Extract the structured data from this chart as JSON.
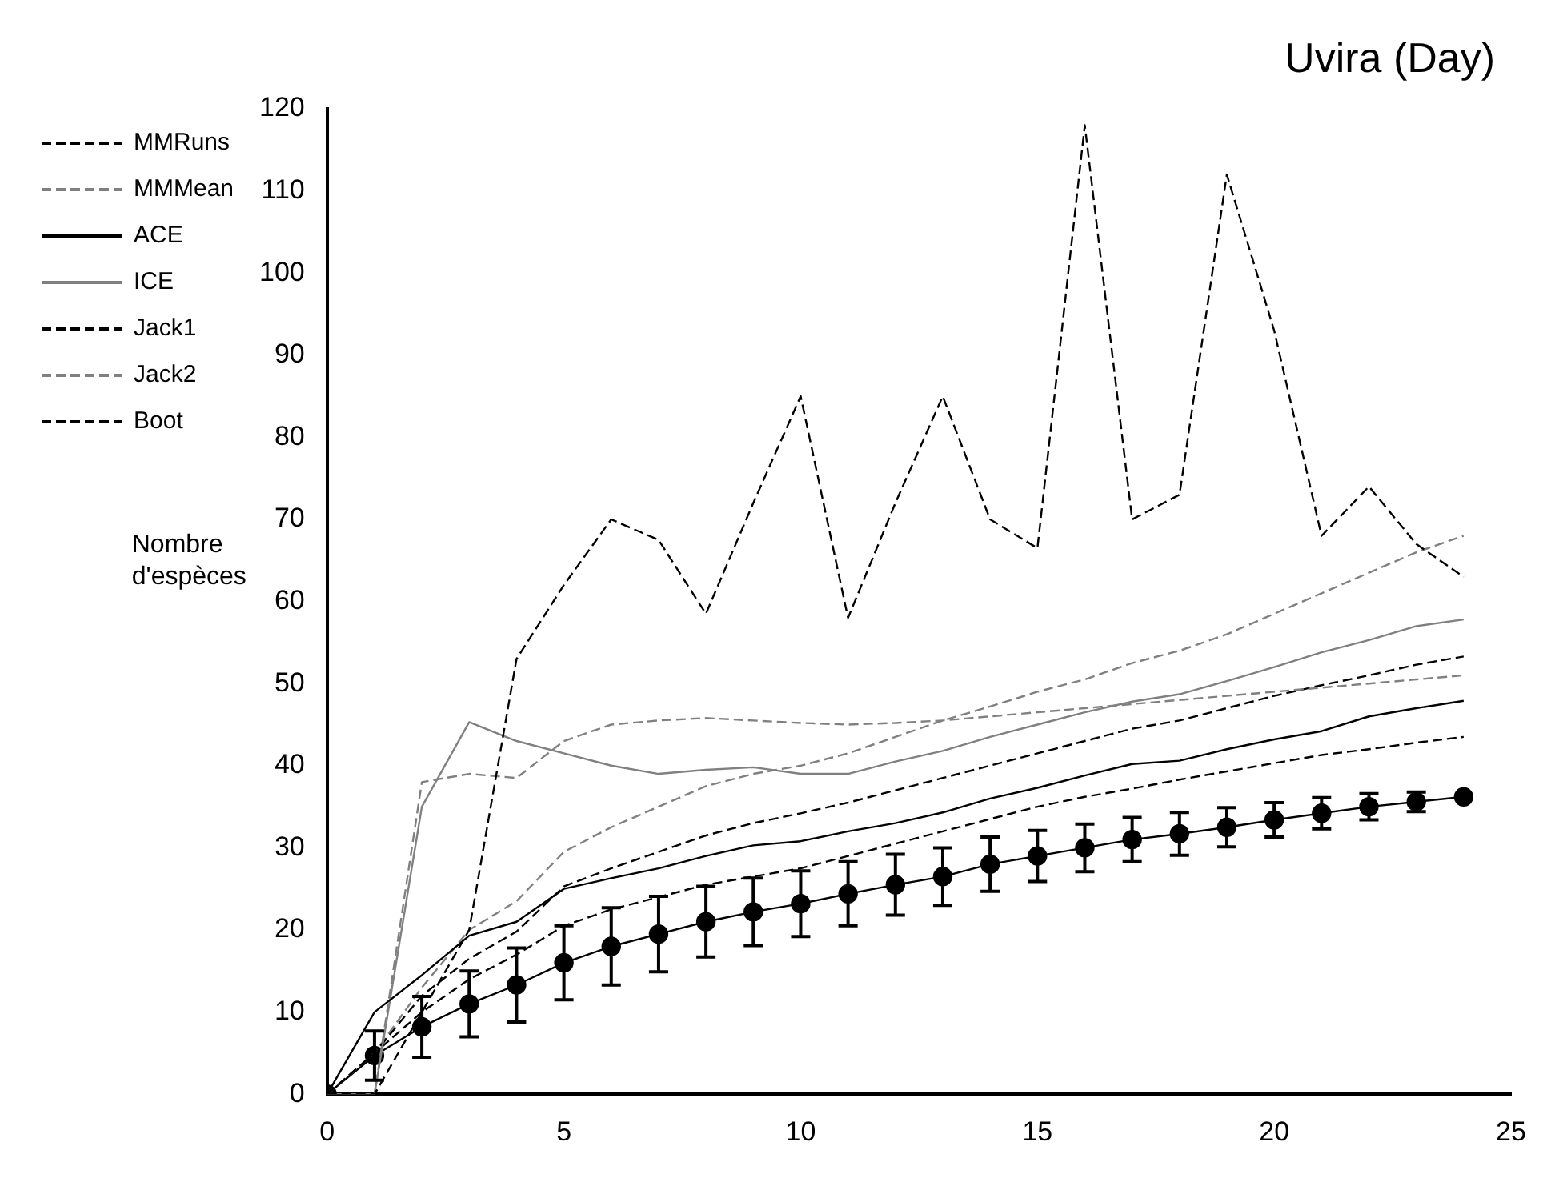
{
  "chart_data": {
    "type": "line",
    "title": "Uvira (Day)",
    "ylabel": "Nombre d'espèces",
    "x": [
      0,
      1,
      2,
      3,
      4,
      5,
      6,
      7,
      8,
      9,
      10,
      11,
      12,
      13,
      14,
      15,
      16,
      17,
      18,
      19,
      20,
      21,
      22,
      23,
      24
    ],
    "xlim": [
      0,
      25
    ],
    "xticks": [
      0,
      5,
      10,
      15,
      20,
      25
    ],
    "ylim": [
      0,
      120
    ],
    "yticks": [
      0,
      10,
      20,
      30,
      40,
      50,
      60,
      70,
      80,
      90,
      100,
      110,
      120
    ],
    "grid": false,
    "legend": "top left",
    "series": [
      {
        "name": "MMRuns",
        "color": "#000000",
        "line_style": "dashed",
        "marker": "none",
        "values": [
          0,
          0,
          10,
          20,
          53,
          62,
          70,
          67.5,
          58.5,
          72,
          85,
          58,
          72,
          85,
          70,
          66.5,
          118,
          70,
          73,
          112,
          93,
          68,
          74,
          67,
          63
        ]
      },
      {
        "name": "MMMean",
        "color": "#808080",
        "line_style": "dashed",
        "marker": "none",
        "values": [
          0,
          0,
          38,
          39,
          38.5,
          43,
          45,
          45.5,
          45.8,
          45.5,
          45.2,
          45,
          45.2,
          45.5,
          46,
          46.5,
          47,
          47.5,
          48,
          48.5,
          49,
          49.5,
          50,
          50.5,
          51
        ]
      },
      {
        "name": "ACE",
        "color": "#000000",
        "line_style": "solid",
        "marker": "none",
        "values": [
          0,
          10,
          14.5,
          19.3,
          21,
          25,
          26.3,
          27.5,
          29,
          30.3,
          30.8,
          32,
          33,
          34.3,
          36,
          37.3,
          38.8,
          40.2,
          40.6,
          42,
          43.2,
          44.2,
          46,
          47,
          47.9
        ]
      },
      {
        "name": "ICE",
        "color": "#808080",
        "line_style": "solid",
        "marker": "none",
        "values": [
          0,
          0,
          35,
          45.3,
          43,
          41.5,
          40,
          39,
          39.5,
          39.8,
          39,
          39,
          40.5,
          41.8,
          43.5,
          45,
          46.5,
          47.8,
          48.7,
          50.3,
          52,
          53.8,
          55.3,
          57,
          57.8
        ]
      },
      {
        "name": "Jack1",
        "color": "#000000",
        "line_style": "dashed",
        "marker": "none",
        "values": [
          0,
          5,
          12,
          16.5,
          19.8,
          25.3,
          27.5,
          29.5,
          31.5,
          33,
          34.2,
          35.5,
          37,
          38.5,
          40,
          41.5,
          43,
          44.5,
          45.5,
          47,
          48.5,
          49.8,
          51,
          52.3,
          53.3
        ]
      },
      {
        "name": "Jack2",
        "color": "#808080",
        "line_style": "dashed",
        "marker": "none",
        "values": [
          0,
          5,
          13,
          20,
          23.5,
          29.5,
          32.5,
          35,
          37.5,
          39,
          40,
          41.5,
          43.5,
          45.5,
          47.2,
          49,
          50.5,
          52.5,
          54,
          56,
          58.5,
          61,
          63.5,
          66,
          68
        ]
      },
      {
        "name": "Boot",
        "color": "#000000",
        "line_style": "dashed",
        "marker": "none",
        "values": [
          0,
          5,
          10,
          14,
          17,
          20.5,
          22.5,
          24,
          25.5,
          26.5,
          27.5,
          29,
          30.5,
          32,
          33.5,
          35,
          36.2,
          37.2,
          38.3,
          39.3,
          40.3,
          41.3,
          42,
          42.8,
          43.5
        ]
      },
      {
        "color": "#000000",
        "line_style": "solid",
        "marker": "circle",
        "values": [
          0,
          4.7,
          8.2,
          11,
          13.3,
          16,
          18,
          19.5,
          21,
          22.2,
          23.2,
          24.4,
          25.5,
          26.5,
          28,
          29,
          30,
          31,
          31.7,
          32.5,
          33.4,
          34.2,
          35,
          35.6,
          36.2
        ],
        "errors": [
          null,
          3,
          3.7,
          4,
          4.5,
          4.5,
          4.7,
          4.6,
          4.3,
          4.1,
          4,
          3.9,
          3.7,
          3.5,
          3.3,
          3.1,
          2.9,
          2.7,
          2.6,
          2.4,
          2.1,
          1.9,
          1.6,
          1.2,
          null
        ]
      }
    ]
  }
}
